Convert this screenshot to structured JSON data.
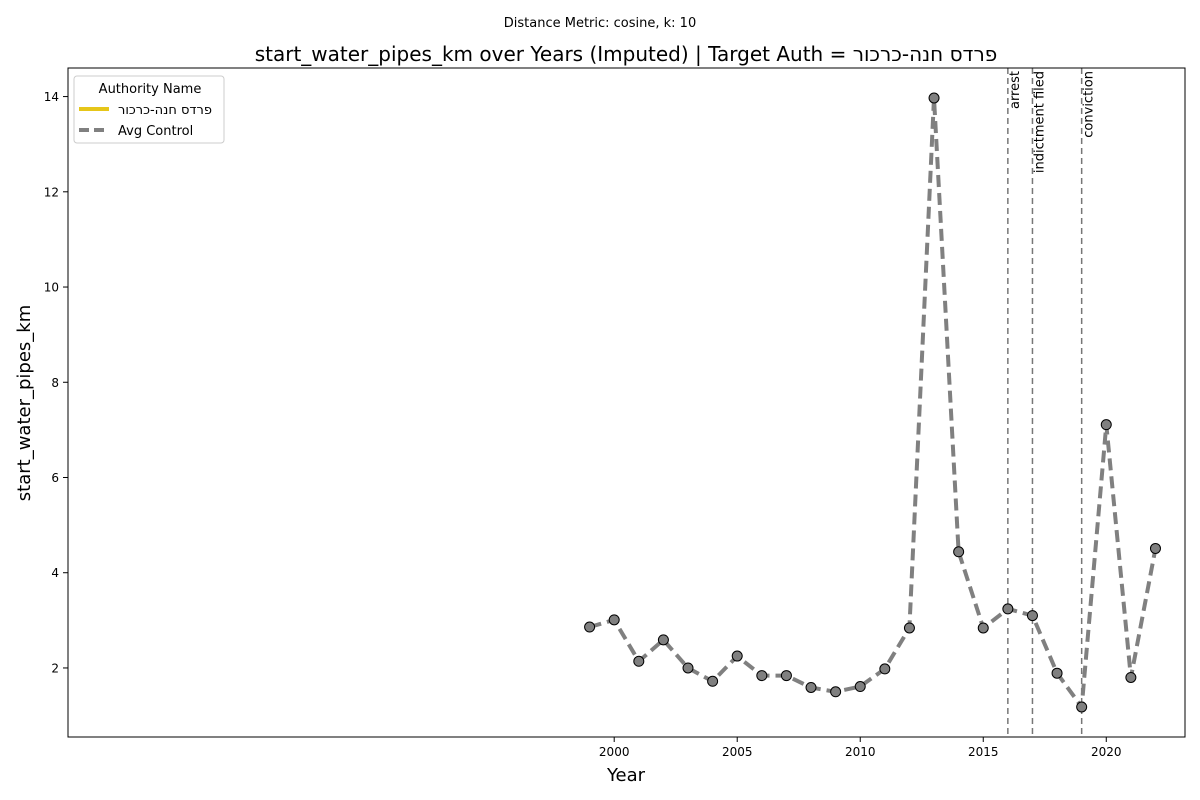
{
  "chart_data": {
    "type": "line",
    "suptitle": "Distance Metric: cosine, k: 10",
    "title": "start_water_pipes_km over Years (Imputed) | Target Auth = פרדס חנה-כרכור",
    "xlabel": "Year",
    "ylabel": "start_water_pipes_km",
    "xlim": [
      1977.8,
      2023.2
    ],
    "ylim": [
      0.55,
      14.6
    ],
    "xticks": [
      2000,
      2005,
      2010,
      2015,
      2020
    ],
    "yticks": [
      2,
      4,
      6,
      8,
      10,
      12,
      14
    ],
    "grid": false,
    "legend": {
      "title": "Authority Name",
      "placement": "top-left",
      "entries": [
        {
          "label": "פרדס חנה-כרכור",
          "color": "#e6c619",
          "style": "solid"
        },
        {
          "label": "Avg Control",
          "color": "#808080",
          "style": "dashed"
        }
      ]
    },
    "series": [
      {
        "name": "Avg Control",
        "color": "#808080",
        "marker_color": "#808080",
        "x": [
          1999,
          2000,
          2001,
          2002,
          2003,
          2004,
          2005,
          2006,
          2007,
          2008,
          2009,
          2010,
          2011,
          2012,
          2013,
          2014,
          2015,
          2016,
          2017,
          2018,
          2019,
          2020,
          2021,
          2022
        ],
        "y": [
          2.86,
          3.01,
          2.14,
          2.59,
          2.0,
          1.72,
          2.25,
          1.84,
          1.84,
          1.59,
          1.5,
          1.61,
          1.98,
          2.84,
          13.97,
          4.44,
          2.84,
          3.24,
          3.1,
          1.89,
          1.18,
          7.11,
          1.8,
          4.51
        ]
      }
    ],
    "events": [
      {
        "x": 2016,
        "label": "arrest"
      },
      {
        "x": 2017,
        "label": "indictment filed"
      },
      {
        "x": 2019,
        "label": "conviction"
      }
    ]
  }
}
